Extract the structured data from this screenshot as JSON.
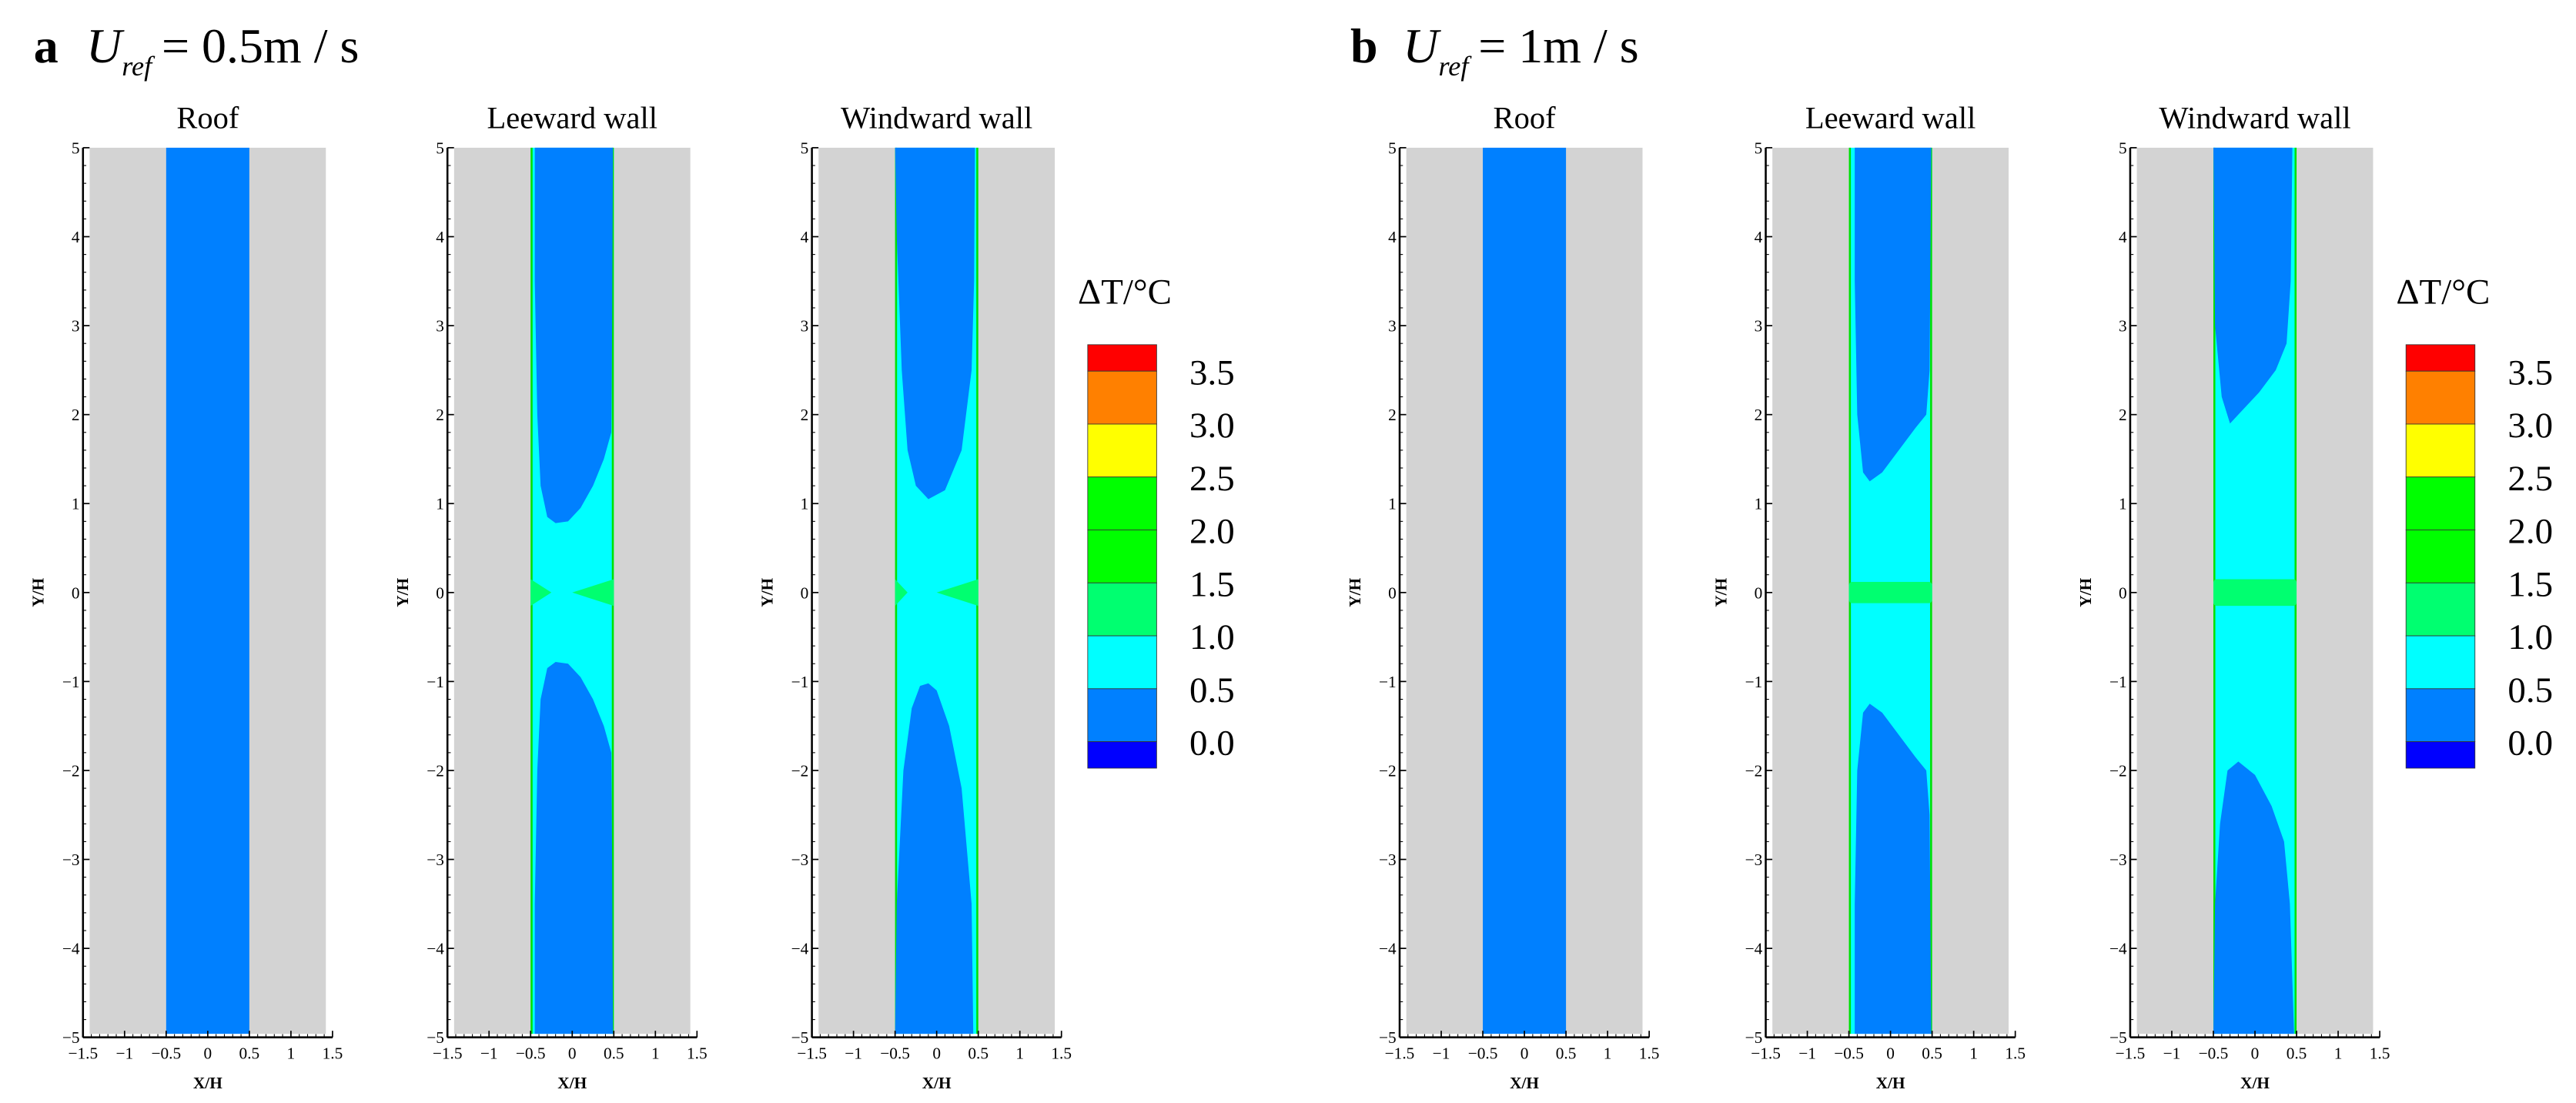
{
  "panels": [
    {
      "letter": "a",
      "u_symbol": "U",
      "u_sub": "ref",
      "u_value": "= 0.5m / s",
      "colorbar_title": "ΔT/°C",
      "plots": [
        {
          "title": "Roof",
          "upper": [
            [
              -0.5,
              5
            ],
            [
              0.5,
              5
            ],
            [
              0.5,
              0
            ]
          ],
          "mirror": true,
          "full": true,
          "green": "none"
        },
        {
          "title": "Leeward wall",
          "upper": [
            [
              -0.45,
              5
            ],
            [
              0.49,
              5
            ],
            [
              0.48,
              3
            ],
            [
              0.47,
              1.8
            ],
            [
              0.38,
              1.5
            ],
            [
              0.25,
              1.2
            ],
            [
              0.1,
              0.95
            ],
            [
              -0.05,
              0.8
            ],
            [
              -0.2,
              0.78
            ],
            [
              -0.3,
              0.85
            ],
            [
              -0.38,
              1.2
            ],
            [
              -0.42,
              2
            ],
            [
              -0.45,
              3.5
            ]
          ],
          "mirror": true,
          "green": "wedge",
          "wedge": [
            -0.25,
            0.0,
            0.15
          ]
        },
        {
          "title": "Windward wall",
          "upper": [
            [
              -0.5,
              5
            ],
            [
              0.46,
              5
            ],
            [
              0.45,
              3.5
            ],
            [
              0.42,
              2.5
            ],
            [
              0.3,
              1.6
            ],
            [
              0.1,
              1.15
            ],
            [
              -0.1,
              1.05
            ],
            [
              -0.25,
              1.2
            ],
            [
              -0.35,
              1.6
            ],
            [
              -0.42,
              2.5
            ],
            [
              -0.48,
              4
            ]
          ],
          "lower": [
            [
              -0.5,
              -5
            ],
            [
              0.44,
              -5
            ],
            [
              0.42,
              -3.5
            ],
            [
              0.3,
              -2.2
            ],
            [
              0.15,
              -1.5
            ],
            [
              0,
              -1.1
            ],
            [
              -0.1,
              -1.02
            ],
            [
              -0.2,
              -1.05
            ],
            [
              -0.3,
              -1.3
            ],
            [
              -0.4,
              -2
            ],
            [
              -0.48,
              -3.5
            ]
          ],
          "green": "wedge",
          "wedge": [
            -0.35,
            0.0,
            0.15
          ]
        }
      ]
    },
    {
      "letter": "b",
      "u_symbol": "U",
      "u_sub": "ref",
      "u_value": "= 1m / s",
      "colorbar_title": "ΔT/°C",
      "plots": [
        {
          "title": "Roof",
          "upper": [
            [
              -0.5,
              5
            ],
            [
              0.5,
              5
            ],
            [
              0.5,
              0
            ]
          ],
          "mirror": true,
          "full": true,
          "green": "none"
        },
        {
          "title": "Leeward wall",
          "upper": [
            [
              -0.43,
              5
            ],
            [
              0.49,
              5
            ],
            [
              0.47,
              2.5
            ],
            [
              0.43,
              2.0
            ],
            [
              0.3,
              1.85
            ],
            [
              0.1,
              1.6
            ],
            [
              -0.1,
              1.35
            ],
            [
              -0.25,
              1.25
            ],
            [
              -0.33,
              1.35
            ],
            [
              -0.4,
              2
            ],
            [
              -0.43,
              3.5
            ]
          ],
          "mirror": true,
          "green": "band",
          "band": 0.12
        },
        {
          "title": "Windward wall",
          "upper": [
            [
              -0.5,
              5
            ],
            [
              0.45,
              5
            ],
            [
              0.43,
              3.5
            ],
            [
              0.38,
              2.8
            ],
            [
              0.25,
              2.5
            ],
            [
              0.05,
              2.25
            ],
            [
              -0.2,
              2.0
            ],
            [
              -0.3,
              1.9
            ],
            [
              -0.4,
              2.2
            ],
            [
              -0.48,
              3
            ]
          ],
          "lower": [
            [
              -0.5,
              -5
            ],
            [
              0.47,
              -5
            ],
            [
              0.42,
              -3.5
            ],
            [
              0.35,
              -2.8
            ],
            [
              0.2,
              -2.4
            ],
            [
              0,
              -2.05
            ],
            [
              -0.2,
              -1.9
            ],
            [
              -0.33,
              -2.0
            ],
            [
              -0.42,
              -2.6
            ],
            [
              -0.48,
              -3.5
            ]
          ],
          "green": "band",
          "band": 0.15
        }
      ]
    }
  ],
  "chart_data": {
    "type": "heatmap",
    "xlabel": "X/H",
    "ylabel": "Y/H",
    "xlim": [
      -1.5,
      1.5
    ],
    "ylim": [
      -5,
      5
    ],
    "xticks": [
      "−1.5",
      "−1",
      "−0.5",
      "0",
      "0.5",
      "1",
      "1.5"
    ],
    "xtick_values": [
      -1.5,
      -1,
      -0.5,
      0,
      0.5,
      1,
      1.5
    ],
    "yticks": [
      "−5",
      "−4",
      "−3",
      "−2",
      "−1",
      "0",
      "1",
      "2",
      "3",
      "4",
      "5"
    ],
    "ytick_values": [
      -5,
      -4,
      -3,
      -2,
      -1,
      0,
      1,
      2,
      3,
      4,
      5
    ],
    "colorbar_levels": [
      "3.5",
      "3.0",
      "2.5",
      "2.0",
      "1.5",
      "1.0",
      "0.5",
      "0.0"
    ],
    "colorbar_colors": [
      "#ff0000",
      "#ff8000",
      "#ffff00",
      "#00ff00",
      "#00ff00",
      "#00ff70",
      "#00ffff",
      "#0080ff",
      "#0000ff"
    ],
    "background_color": "#d3d3d3",
    "base_color": "#00ffff",
    "low_color": "#0080ff",
    "green_color": "#00ff70",
    "edge_color": "#00e000"
  }
}
